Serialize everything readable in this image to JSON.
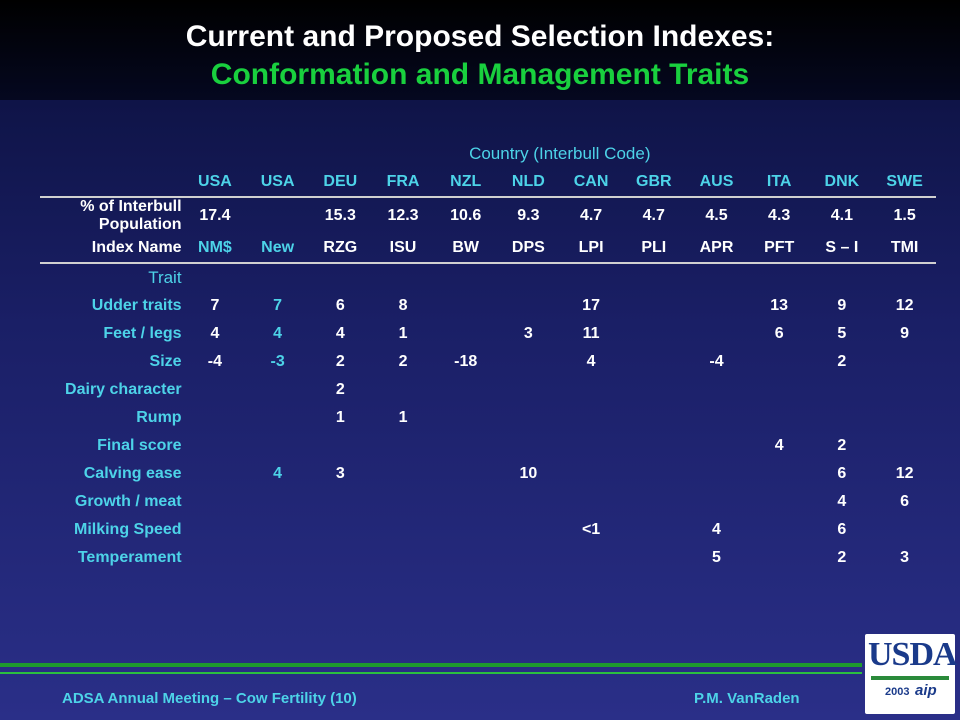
{
  "title": "Current and Proposed Selection Indexes:",
  "subtitle": "Conformation and Management Traits",
  "country_header": "Country (Interbull Code)",
  "codes": [
    "USA",
    "USA",
    "DEU",
    "FRA",
    "NZL",
    "NLD",
    "CAN",
    "GBR",
    "AUS",
    "ITA",
    "DNK",
    "SWE"
  ],
  "population_label": "% of Interbull Population",
  "population": [
    "17.4",
    "",
    "15.3",
    "12.3",
    "10.6",
    "9.3",
    "4.7",
    "4.7",
    "4.5",
    "4.3",
    "4.1",
    "1.5"
  ],
  "index_label": "Index Name",
  "index_names": [
    "NM$",
    "New",
    "RZG",
    "ISU",
    "BW",
    "DPS",
    "LPI",
    "PLI",
    "APR",
    "PFT",
    "S – I",
    "TMI"
  ],
  "trait_header": "Trait",
  "traits": [
    {
      "name": "Udder traits",
      "values": [
        "7",
        "7",
        "6",
        "8",
        "",
        "",
        "17",
        "",
        "",
        "13",
        "9",
        "12"
      ]
    },
    {
      "name": "Feet / legs",
      "values": [
        "4",
        "4",
        "4",
        "1",
        "",
        "3",
        "11",
        "",
        "",
        "6",
        "5",
        "9"
      ]
    },
    {
      "name": "Size",
      "values": [
        "-4",
        "-3",
        "2",
        "2",
        "-18",
        "",
        "4",
        "",
        "-4",
        "",
        "2",
        ""
      ]
    },
    {
      "name": "Dairy character",
      "values": [
        "",
        "",
        "2",
        "",
        "",
        "",
        "",
        "",
        "",
        "",
        "",
        ""
      ]
    },
    {
      "name": "Rump",
      "values": [
        "",
        "",
        "1",
        "1",
        "",
        "",
        "",
        "",
        "",
        "",
        "",
        ""
      ]
    },
    {
      "name": "Final score",
      "values": [
        "",
        "",
        "",
        "",
        "",
        "",
        "",
        "",
        "",
        "4",
        "2",
        ""
      ]
    },
    {
      "name": "Calving ease",
      "values": [
        "",
        "4",
        "3",
        "",
        "",
        "10",
        "",
        "",
        "",
        "",
        "6",
        "12"
      ]
    },
    {
      "name": "Growth / meat",
      "values": [
        "",
        "",
        "",
        "",
        "",
        "",
        "",
        "",
        "",
        "",
        "4",
        "6"
      ]
    },
    {
      "name": "Milking Speed",
      "values": [
        "",
        "",
        "",
        "",
        "",
        "",
        "<1",
        "",
        "4",
        "",
        "6",
        ""
      ]
    },
    {
      "name": "Temperament",
      "values": [
        "",
        "",
        "",
        "",
        "",
        "",
        "",
        "",
        "5",
        "",
        "2",
        "3"
      ]
    }
  ],
  "footer": {
    "left": "ADSA Annual Meeting – Cow Fertility (10)",
    "right": "P.M. VanRaden"
  },
  "logo": {
    "text": "USDA",
    "year": "2003",
    "mark": "aip"
  },
  "colors": {
    "title": "#ffffff",
    "subtitle": "#19d03e",
    "accent": "#4dd3e8",
    "footer_line": "#1e9a2e"
  }
}
